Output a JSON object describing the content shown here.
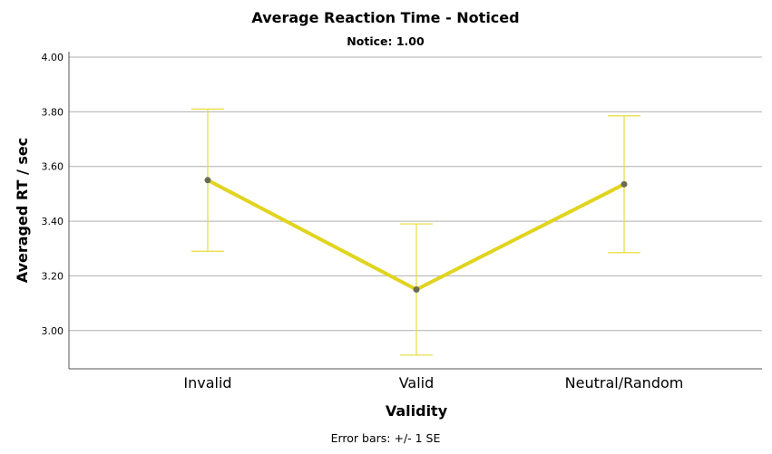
{
  "chart_data": {
    "type": "line",
    "title": "Average Reaction Time - Noticed",
    "subtitle": "Notice: 1.00",
    "xlabel": "Validity",
    "ylabel": "Averaged RT / sec",
    "footnote": "Error bars: +/- 1 SE",
    "categories": [
      "Invalid",
      "Valid",
      "Neutral/Random"
    ],
    "series": [
      {
        "values": [
          3.55,
          3.15,
          3.535
        ],
        "error_low": [
          3.29,
          2.91,
          3.285
        ],
        "error_high": [
          3.81,
          3.39,
          3.785
        ]
      }
    ],
    "ylim": [
      2.86,
      4.02
    ],
    "yticks": [
      "3.00",
      "3.20",
      "3.40",
      "3.60",
      "3.80",
      "4.00"
    ],
    "grid": true,
    "line_color": "#e1d41e",
    "errorbar_color": "#e6dc3c",
    "marker_color": "#6b6b55"
  }
}
